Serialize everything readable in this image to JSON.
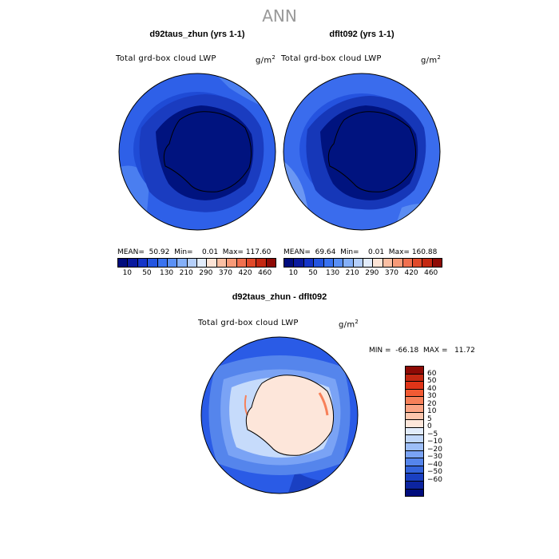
{
  "figure_title": "ANN",
  "panels": [
    {
      "title": "d92taus_zhun (yrs 1-1)",
      "variable": "Total grd-box cloud LWP",
      "units": "g/m",
      "units_sup": "2",
      "stats": "MEAN=  50.92  Min=    0.01  Max= 117.60"
    },
    {
      "title": "dflt092 (yrs 1-1)",
      "variable": "Total grd-box cloud LWP",
      "units": "g/m",
      "units_sup": "2",
      "stats": "MEAN=  69.64  Min=    0.01  Max= 160.88"
    }
  ],
  "top_colorbar": {
    "colors": [
      "#000c7d",
      "#0a1a9e",
      "#1535c8",
      "#2455e0",
      "#3a73f0",
      "#5a90f5",
      "#85b0f8",
      "#b5cffa",
      "#e2ecfb",
      "#fde4d6",
      "#fbbfa3",
      "#f79a78",
      "#f0704f",
      "#e04a2a",
      "#c42812",
      "#8e0a05"
    ],
    "labels": [
      "10",
      "50",
      "130",
      "210",
      "290",
      "370",
      "420",
      "460"
    ]
  },
  "diff_panel": {
    "title": "d92taus_zhun - dflt092",
    "variable": "Total grd-box cloud LWP",
    "units": "g/m",
    "units_sup": "2",
    "stats": "MIN =  -66.18  MAX =   11.72"
  },
  "diff_colorbar": {
    "colors": [
      "#8e0a05",
      "#c42812",
      "#e03418",
      "#f25a33",
      "#f78059",
      "#fba484",
      "#fcc6ad",
      "#fde6da",
      "#e2ecfb",
      "#c1d7fa",
      "#9dbef8",
      "#7aa3f5",
      "#5585ec",
      "#3464dc",
      "#1a40c2",
      "#0c24a0",
      "#000c7d"
    ],
    "labels": [
      "60",
      "50",
      "40",
      "30",
      "20",
      "10",
      "5",
      "0",
      "−5",
      "−10",
      "−20",
      "−30",
      "−40",
      "−50",
      "−60"
    ]
  },
  "map_colors": {
    "ocean": "#2e60e8",
    "ocean_light": "#4a7ef0",
    "coast_band": "#1a3cc0",
    "interior": "#00137f",
    "diff_bg": "#2a5be6",
    "diff_mid": "#7aa3f5",
    "diff_light": "#c6dbfb",
    "diff_land": "#fde6da",
    "diff_pos": "#f78059"
  }
}
